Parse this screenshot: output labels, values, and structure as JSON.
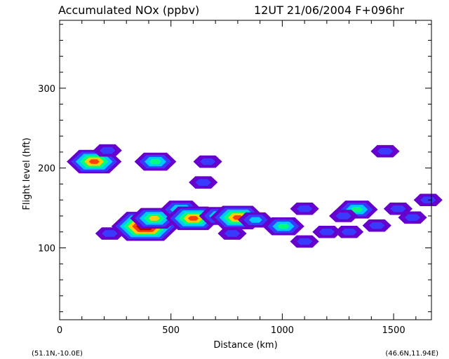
{
  "chart_data": {
    "type": "heatmap",
    "title": "Accumulated NOx  (ppbv)",
    "subtitle": "12UT 21/06/2004  F+096hr",
    "xlabel": "Distance  (km)",
    "ylabel": "Flight level  (hft)",
    "xlim": [
      0,
      1670
    ],
    "ylim": [
      10,
      385
    ],
    "xticks": [
      0,
      500,
      1000,
      1500
    ],
    "yticks": [
      100,
      200,
      300
    ],
    "grid": false,
    "corner_left": "(51.1N,-10.0E)",
    "corner_right": "(46.6N,11.94E)",
    "colors": [
      "#6600cc",
      "#3a3aff",
      "#00c8ff",
      "#00ff80",
      "#ffd000",
      "#ff4000",
      "#b00000",
      "#1a0000"
    ],
    "cells": [
      {
        "x": 155,
        "y": 208,
        "v": 5
      },
      {
        "x": 215,
        "y": 222,
        "v": 1
      },
      {
        "x": 430,
        "y": 208,
        "v": 3
      },
      {
        "x": 665,
        "y": 208,
        "v": 1
      },
      {
        "x": 1462,
        "y": 221,
        "v": 1
      },
      {
        "x": 645,
        "y": 182,
        "v": 1
      },
      {
        "x": 225,
        "y": 118,
        "v": 1
      },
      {
        "x": 385,
        "y": 127,
        "v": 7
      },
      {
        "x": 425,
        "y": 137,
        "v": 4
      },
      {
        "x": 545,
        "y": 148,
        "v": 3
      },
      {
        "x": 600,
        "y": 137,
        "v": 5
      },
      {
        "x": 720,
        "y": 140,
        "v": 3
      },
      {
        "x": 800,
        "y": 138,
        "v": 5
      },
      {
        "x": 880,
        "y": 135,
        "v": 2
      },
      {
        "x": 1005,
        "y": 127,
        "v": 3
      },
      {
        "x": 775,
        "y": 118,
        "v": 1
      },
      {
        "x": 1100,
        "y": 149,
        "v": 1
      },
      {
        "x": 1100,
        "y": 108,
        "v": 1
      },
      {
        "x": 1200,
        "y": 120,
        "v": 1
      },
      {
        "x": 1300,
        "y": 120,
        "v": 1
      },
      {
        "x": 1335,
        "y": 148,
        "v": 3
      },
      {
        "x": 1275,
        "y": 140,
        "v": 1
      },
      {
        "x": 1425,
        "y": 128,
        "v": 1
      },
      {
        "x": 1520,
        "y": 149,
        "v": 1
      },
      {
        "x": 1585,
        "y": 138,
        "v": 1
      },
      {
        "x": 1655,
        "y": 160,
        "v": 1
      }
    ]
  }
}
